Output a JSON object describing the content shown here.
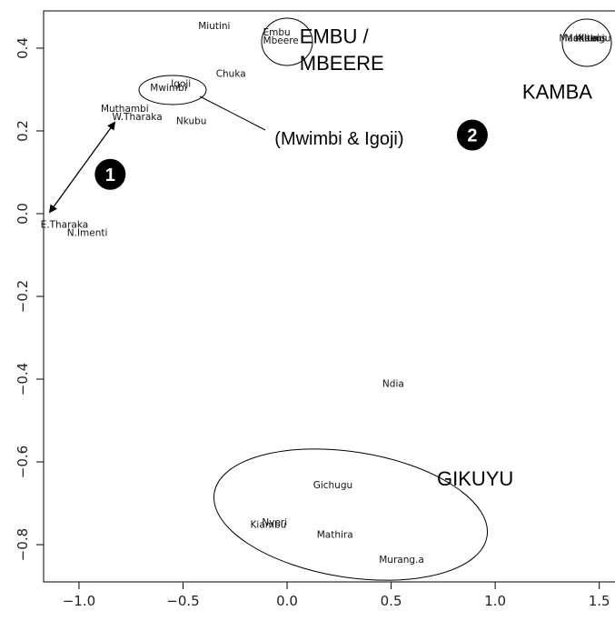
{
  "chart_data": {
    "type": "scatter",
    "title": "",
    "xlabel": "",
    "ylabel": "",
    "xlim": [
      -1.17,
      1.58
    ],
    "ylim": [
      -0.89,
      0.49
    ],
    "x_ticks": [
      -1.0,
      -0.5,
      0.0,
      0.5,
      1.0,
      1.5
    ],
    "x_tick_labels": [
      "−1.0",
      "−0.5",
      "0.0",
      "0.5",
      "1.0",
      "1.5"
    ],
    "y_ticks": [
      -0.8,
      -0.6,
      -0.4,
      -0.2,
      0.0,
      0.2,
      0.4
    ],
    "y_tick_labels": [
      "−0.8",
      "−0.6",
      "−0.4",
      "−0.2",
      "0.0",
      "0.2",
      "0.4"
    ],
    "grid": false,
    "points": [
      {
        "label": "Miutini",
        "x": -0.35,
        "y": 0.455
      },
      {
        "label": "Embu",
        "x": -0.05,
        "y": 0.44
      },
      {
        "label": "Mbeere",
        "x": -0.03,
        "y": 0.42
      },
      {
        "label": "Chuka",
        "x": -0.27,
        "y": 0.34
      },
      {
        "label": "Igoji",
        "x": -0.51,
        "y": 0.315
      },
      {
        "label": "Mwimbi",
        "x": -0.57,
        "y": 0.305
      },
      {
        "label": "Muthambi",
        "x": -0.78,
        "y": 0.255
      },
      {
        "label": "W.Tharaka",
        "x": -0.72,
        "y": 0.235
      },
      {
        "label": "Nkubu",
        "x": -0.46,
        "y": 0.225
      },
      {
        "label": "E.Tharaka",
        "x": -1.07,
        "y": -0.025
      },
      {
        "label": "N.Imenti",
        "x": -0.96,
        "y": -0.045
      },
      {
        "label": "Ndia",
        "x": 0.51,
        "y": -0.41
      },
      {
        "label": "Gichugu",
        "x": 0.22,
        "y": -0.655
      },
      {
        "label": "Kiambu",
        "x": -0.09,
        "y": -0.75
      },
      {
        "label": "Nyeri",
        "x": -0.06,
        "y": -0.745
      },
      {
        "label": "Mathira",
        "x": 0.23,
        "y": -0.775
      },
      {
        "label": "Murang.a",
        "x": 0.55,
        "y": -0.835
      },
      {
        "label": "Machakos",
        "x": 1.42,
        "y": 0.425
      },
      {
        "label": "Kitui",
        "x": 1.45,
        "y": 0.425
      },
      {
        "label": "Makueni",
        "x": 1.43,
        "y": 0.425
      },
      {
        "label": "Kilungu",
        "x": 1.47,
        "y": 0.425
      }
    ],
    "annotations": [
      {
        "text": "EMBU /",
        "x": 0.06,
        "y": 0.43
      },
      {
        "text": "MBEERE",
        "x": 0.06,
        "y": 0.365
      },
      {
        "text": "KAMBA",
        "x": 1.13,
        "y": 0.295
      },
      {
        "text": "(Mwimbi & Igoji)",
        "x": -0.06,
        "y": 0.185
      },
      {
        "text": "GIKUYU",
        "x": 0.72,
        "y": -0.64
      }
    ],
    "markers": [
      {
        "text": "1",
        "x": -0.85,
        "y": 0.095
      },
      {
        "text": "2",
        "x": 0.89,
        "y": 0.19
      }
    ]
  }
}
